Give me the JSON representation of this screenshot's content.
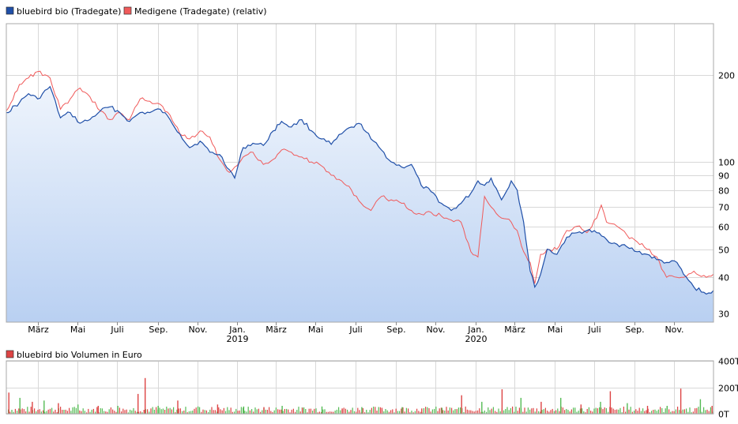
{
  "colors": {
    "bluebird": "#1f4fa8",
    "medigene": "#f05a5a",
    "area_top": "#eef4fc",
    "area_bottom": "#b9d0f2",
    "vol_up": "#55bb55",
    "vol_down": "#dd4444"
  },
  "legend": {
    "bluebird_label": "bluebird bio (Tradegate)",
    "medigene_label": "Medigene (Tradegate) (relativ)",
    "volume_label": "bluebird bio Volumen in Euro"
  },
  "chart_data": [
    {
      "type": "line",
      "title": "",
      "scale": "log",
      "ylim": [
        28,
        300
      ],
      "y_ticks": [
        30,
        40,
        50,
        60,
        70,
        80,
        90,
        100,
        200
      ],
      "x_range": [
        "2018-01-12",
        "2020-12-31"
      ],
      "x_ticks": [
        {
          "date": "2018-03-01",
          "label": "März",
          "sub": ""
        },
        {
          "date": "2018-05-01",
          "label": "Mai",
          "sub": ""
        },
        {
          "date": "2018-07-01",
          "label": "Juli",
          "sub": ""
        },
        {
          "date": "2018-09-01",
          "label": "Sep.",
          "sub": ""
        },
        {
          "date": "2018-11-01",
          "label": "Nov.",
          "sub": ""
        },
        {
          "date": "2019-01-01",
          "label": "Jan.",
          "sub": "2019"
        },
        {
          "date": "2019-03-01",
          "label": "März",
          "sub": ""
        },
        {
          "date": "2019-05-01",
          "label": "Mai",
          "sub": ""
        },
        {
          "date": "2019-07-01",
          "label": "Juli",
          "sub": ""
        },
        {
          "date": "2019-09-01",
          "label": "Sep.",
          "sub": ""
        },
        {
          "date": "2019-11-01",
          "label": "Nov.",
          "sub": ""
        },
        {
          "date": "2020-01-01",
          "label": "Jan.",
          "sub": "2020"
        },
        {
          "date": "2020-03-01",
          "label": "März",
          "sub": ""
        },
        {
          "date": "2020-05-01",
          "label": "Mai",
          "sub": ""
        },
        {
          "date": "2020-07-01",
          "label": "Juli",
          "sub": ""
        },
        {
          "date": "2020-09-01",
          "label": "Sep.",
          "sub": ""
        },
        {
          "date": "2020-11-01",
          "label": "Nov.",
          "sub": ""
        }
      ],
      "grid": true,
      "legend": "top-left",
      "series": [
        {
          "name": "bluebird bio (Tradegate)",
          "color": "#1f4fa8",
          "filled": true,
          "points": [
            [
              "2018-01-12",
              148
            ],
            [
              "2018-02-01",
              160
            ],
            [
              "2018-02-15",
              172
            ],
            [
              "2018-03-01",
              165
            ],
            [
              "2018-03-20",
              182
            ],
            [
              "2018-04-05",
              142
            ],
            [
              "2018-04-20",
              148
            ],
            [
              "2018-05-05",
              136
            ],
            [
              "2018-05-20",
              140
            ],
            [
              "2018-06-05",
              150
            ],
            [
              "2018-06-20",
              155
            ],
            [
              "2018-07-05",
              148
            ],
            [
              "2018-07-20",
              138
            ],
            [
              "2018-08-05",
              148
            ],
            [
              "2018-08-20",
              148
            ],
            [
              "2018-09-05",
              152
            ],
            [
              "2018-09-20",
              140
            ],
            [
              "2018-10-05",
              125
            ],
            [
              "2018-10-20",
              112
            ],
            [
              "2018-11-05",
              118
            ],
            [
              "2018-11-20",
              108
            ],
            [
              "2018-12-05",
              106
            ],
            [
              "2018-12-20",
              94
            ],
            [
              "2018-12-28",
              88
            ],
            [
              "2019-01-10",
              112
            ],
            [
              "2019-01-25",
              116
            ],
            [
              "2019-02-10",
              114
            ],
            [
              "2019-02-25",
              128
            ],
            [
              "2019-03-10",
              138
            ],
            [
              "2019-03-25",
              132
            ],
            [
              "2019-04-10",
              140
            ],
            [
              "2019-04-25",
              128
            ],
            [
              "2019-05-10",
              120
            ],
            [
              "2019-05-25",
              115
            ],
            [
              "2019-06-10",
              125
            ],
            [
              "2019-06-25",
              132
            ],
            [
              "2019-07-10",
              135
            ],
            [
              "2019-07-25",
              120
            ],
            [
              "2019-08-10",
              110
            ],
            [
              "2019-08-25",
              100
            ],
            [
              "2019-09-10",
              96
            ],
            [
              "2019-09-25",
              98
            ],
            [
              "2019-10-10",
              83
            ],
            [
              "2019-10-25",
              79
            ],
            [
              "2019-11-10",
              72
            ],
            [
              "2019-11-25",
              68
            ],
            [
              "2019-12-10",
              72
            ],
            [
              "2019-12-25",
              78
            ],
            [
              "2020-01-05",
              86
            ],
            [
              "2020-01-15",
              83
            ],
            [
              "2020-01-25",
              88
            ],
            [
              "2020-02-10",
              74
            ],
            [
              "2020-02-25",
              86
            ],
            [
              "2020-03-05",
              80
            ],
            [
              "2020-03-15",
              62
            ],
            [
              "2020-03-25",
              42
            ],
            [
              "2020-04-01",
              37
            ],
            [
              "2020-04-10",
              41
            ],
            [
              "2020-04-20",
              50
            ],
            [
              "2020-05-05",
              48
            ],
            [
              "2020-05-20",
              55
            ],
            [
              "2020-06-05",
              57
            ],
            [
              "2020-06-20",
              58
            ],
            [
              "2020-07-05",
              57
            ],
            [
              "2020-07-20",
              54
            ],
            [
              "2020-08-05",
              52
            ],
            [
              "2020-08-20",
              51
            ],
            [
              "2020-09-05",
              49
            ],
            [
              "2020-09-20",
              48
            ],
            [
              "2020-10-05",
              46
            ],
            [
              "2020-10-20",
              45
            ],
            [
              "2020-11-05",
              45
            ],
            [
              "2020-11-15",
              41
            ],
            [
              "2020-12-01",
              37
            ],
            [
              "2020-12-20",
              35
            ],
            [
              "2020-12-31",
              36
            ]
          ]
        },
        {
          "name": "Medigene (Tradegate) (relativ)",
          "color": "#f05a5a",
          "filled": false,
          "points": [
            [
              "2018-01-12",
              150
            ],
            [
              "2018-02-01",
              185
            ],
            [
              "2018-02-15",
              195
            ],
            [
              "2018-03-01",
              205
            ],
            [
              "2018-03-20",
              195
            ],
            [
              "2018-04-05",
              152
            ],
            [
              "2018-04-20",
              165
            ],
            [
              "2018-05-05",
              180
            ],
            [
              "2018-05-20",
              168
            ],
            [
              "2018-06-05",
              150
            ],
            [
              "2018-06-20",
              140
            ],
            [
              "2018-07-05",
              148
            ],
            [
              "2018-07-20",
              140
            ],
            [
              "2018-08-05",
              165
            ],
            [
              "2018-08-20",
              162
            ],
            [
              "2018-09-05",
              158
            ],
            [
              "2018-09-20",
              145
            ],
            [
              "2018-10-05",
              125
            ],
            [
              "2018-10-20",
              120
            ],
            [
              "2018-11-05",
              128
            ],
            [
              "2018-11-20",
              122
            ],
            [
              "2018-12-05",
              102
            ],
            [
              "2018-12-20",
              92
            ],
            [
              "2018-12-28",
              96
            ],
            [
              "2019-01-10",
              104
            ],
            [
              "2019-01-25",
              108
            ],
            [
              "2019-02-10",
              98
            ],
            [
              "2019-02-25",
              102
            ],
            [
              "2019-03-10",
              110
            ],
            [
              "2019-03-25",
              108
            ],
            [
              "2019-04-10",
              104
            ],
            [
              "2019-04-25",
              100
            ],
            [
              "2019-05-10",
              97
            ],
            [
              "2019-05-25",
              90
            ],
            [
              "2019-06-10",
              86
            ],
            [
              "2019-06-25",
              80
            ],
            [
              "2019-07-10",
              72
            ],
            [
              "2019-07-25",
              68
            ],
            [
              "2019-08-10",
              76
            ],
            [
              "2019-08-25",
              74
            ],
            [
              "2019-09-10",
              72
            ],
            [
              "2019-09-25",
              68
            ],
            [
              "2019-10-10",
              66
            ],
            [
              "2019-10-25",
              67
            ],
            [
              "2019-11-10",
              65
            ],
            [
              "2019-11-25",
              63
            ],
            [
              "2019-12-10",
              62
            ],
            [
              "2019-12-25",
              49
            ],
            [
              "2020-01-05",
              47
            ],
            [
              "2020-01-15",
              76
            ],
            [
              "2020-01-25",
              70
            ],
            [
              "2020-02-10",
              64
            ],
            [
              "2020-02-25",
              62
            ],
            [
              "2020-03-05",
              58
            ],
            [
              "2020-03-15",
              49
            ],
            [
              "2020-03-25",
              45
            ],
            [
              "2020-04-01",
              38
            ],
            [
              "2020-04-10",
              48
            ],
            [
              "2020-04-20",
              50
            ],
            [
              "2020-05-05",
              50
            ],
            [
              "2020-05-20",
              58
            ],
            [
              "2020-06-05",
              60
            ],
            [
              "2020-06-20",
              57
            ],
            [
              "2020-07-05",
              64
            ],
            [
              "2020-07-12",
              71
            ],
            [
              "2020-07-20",
              62
            ],
            [
              "2020-08-05",
              60
            ],
            [
              "2020-08-20",
              56
            ],
            [
              "2020-09-05",
              53
            ],
            [
              "2020-09-20",
              50
            ],
            [
              "2020-10-05",
              47
            ],
            [
              "2020-10-20",
              40
            ],
            [
              "2020-11-05",
              40
            ],
            [
              "2020-11-15",
              40
            ],
            [
              "2020-12-01",
              42
            ],
            [
              "2020-12-20",
              40
            ],
            [
              "2020-12-31",
              41
            ]
          ]
        }
      ]
    },
    {
      "type": "bar",
      "title": "",
      "ylabel": "",
      "ylim": [
        0,
        400
      ],
      "unit": "T",
      "y_ticks": [
        {
          "value": 0,
          "label": "0T"
        },
        {
          "value": 200,
          "label": "200T"
        },
        {
          "value": 400,
          "label": "400T"
        }
      ],
      "series": [
        {
          "name": "bluebird bio Volumen in Euro",
          "bars": [
            [
              "2018-01-15",
              160,
              "down"
            ],
            [
              "2018-02-01",
              120,
              "up"
            ],
            [
              "2018-02-20",
              90,
              "down"
            ],
            [
              "2018-03-10",
              100,
              "up"
            ],
            [
              "2018-04-01",
              80,
              "down"
            ],
            [
              "2018-05-01",
              70,
              "up"
            ],
            [
              "2018-06-01",
              60,
              "down"
            ],
            [
              "2018-07-01",
              60,
              "up"
            ],
            [
              "2018-08-01",
              150,
              "down"
            ],
            [
              "2018-08-12",
              270,
              "down"
            ],
            [
              "2018-09-01",
              60,
              "up"
            ],
            [
              "2018-10-01",
              100,
              "down"
            ],
            [
              "2018-11-01",
              55,
              "up"
            ],
            [
              "2018-12-01",
              70,
              "down"
            ],
            [
              "2019-01-10",
              55,
              "up"
            ],
            [
              "2019-02-10",
              50,
              "down"
            ],
            [
              "2019-03-10",
              60,
              "up"
            ],
            [
              "2019-04-10",
              45,
              "down"
            ],
            [
              "2019-05-10",
              55,
              "up"
            ],
            [
              "2019-06-10",
              40,
              "down"
            ],
            [
              "2019-07-10",
              50,
              "up"
            ],
            [
              "2019-08-10",
              45,
              "down"
            ],
            [
              "2019-09-10",
              50,
              "up"
            ],
            [
              "2019-10-10",
              40,
              "down"
            ],
            [
              "2019-11-10",
              45,
              "up"
            ],
            [
              "2019-12-10",
              140,
              "down"
            ],
            [
              "2020-01-10",
              90,
              "up"
            ],
            [
              "2020-02-10",
              185,
              "down"
            ],
            [
              "2020-03-10",
              120,
              "up"
            ],
            [
              "2020-04-10",
              90,
              "down"
            ],
            [
              "2020-05-10",
              120,
              "up"
            ],
            [
              "2020-06-10",
              70,
              "down"
            ],
            [
              "2020-07-10",
              90,
              "up"
            ],
            [
              "2020-07-25",
              170,
              "down"
            ],
            [
              "2020-08-20",
              80,
              "up"
            ],
            [
              "2020-09-20",
              60,
              "down"
            ],
            [
              "2020-10-20",
              60,
              "up"
            ],
            [
              "2020-11-10",
              190,
              "down"
            ],
            [
              "2020-12-10",
              110,
              "up"
            ],
            [
              "2020-12-28",
              60,
              "down"
            ]
          ]
        }
      ]
    }
  ]
}
